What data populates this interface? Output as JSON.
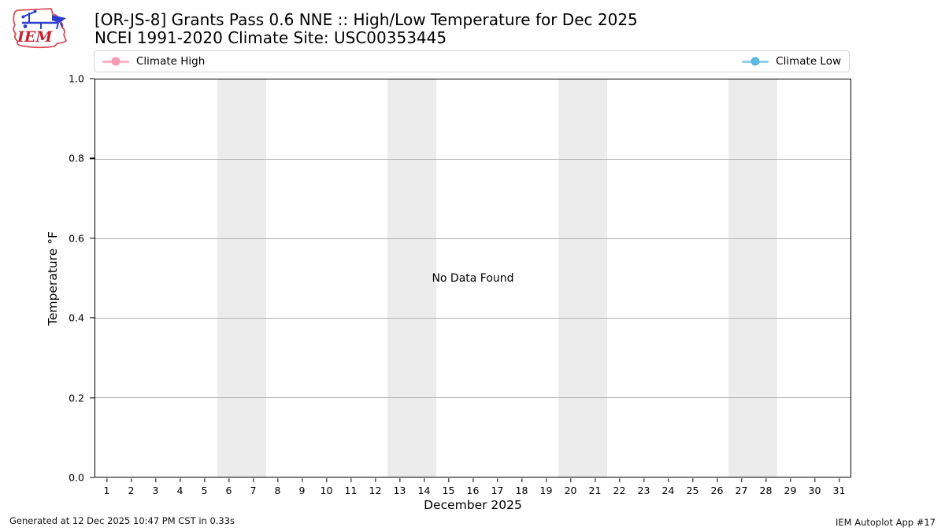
{
  "header": {
    "logo": {
      "text": "IEM",
      "colors": {
        "red": "#d8505c",
        "blue": "#2b3fd0"
      }
    },
    "title_line1": "[OR-JS-8] Grants Pass 0.6 NNE :: High/Low Temperature for Dec 2025",
    "title_line2": "NCEI 1991-2020 Climate Site: USC00353445"
  },
  "legend": {
    "items": [
      {
        "label": "Climate High",
        "line_color": "#fab4c3",
        "marker_color": "#f59cb4"
      },
      {
        "label": "Climate Low",
        "line_color": "#8dd1ec",
        "marker_color": "#5bb8de"
      }
    ]
  },
  "chart_data": {
    "type": "line",
    "title": "[OR-JS-8] Grants Pass 0.6 NNE :: High/Low Temperature for Dec 2025",
    "subtitle": "NCEI 1991-2020 Climate Site: USC00353445",
    "xlabel": "December 2025",
    "ylabel": "Temperature °F",
    "xlim": [
      0.5,
      31.5
    ],
    "ylim": [
      0.0,
      1.0
    ],
    "x_ticks": [
      1,
      2,
      3,
      4,
      5,
      6,
      7,
      8,
      9,
      10,
      11,
      12,
      13,
      14,
      15,
      16,
      17,
      18,
      19,
      20,
      21,
      22,
      23,
      24,
      25,
      26,
      27,
      28,
      29,
      30,
      31
    ],
    "y_ticks": [
      "0.0",
      "0.2",
      "0.4",
      "0.6",
      "0.8",
      "1.0"
    ],
    "grid": "horizontal",
    "grid_color": "#b0b0b0",
    "weekend_bands": [
      [
        5.5,
        7.5
      ],
      [
        12.5,
        14.5
      ],
      [
        19.5,
        21.5
      ],
      [
        26.5,
        28.5
      ]
    ],
    "band_color": "#ececec",
    "legend_position": "top, spanning plot width, entries at far left and far right",
    "series": [
      {
        "name": "Climate High",
        "color": "#fab4c3",
        "x": [],
        "values": []
      },
      {
        "name": "Climate Low",
        "color": "#8dd1ec",
        "x": [],
        "values": []
      }
    ],
    "no_data_message": "No Data Found"
  },
  "footer": {
    "left": "Generated at 12 Dec 2025 10:47 PM CST in 0.33s",
    "right": "IEM Autoplot App #17"
  }
}
